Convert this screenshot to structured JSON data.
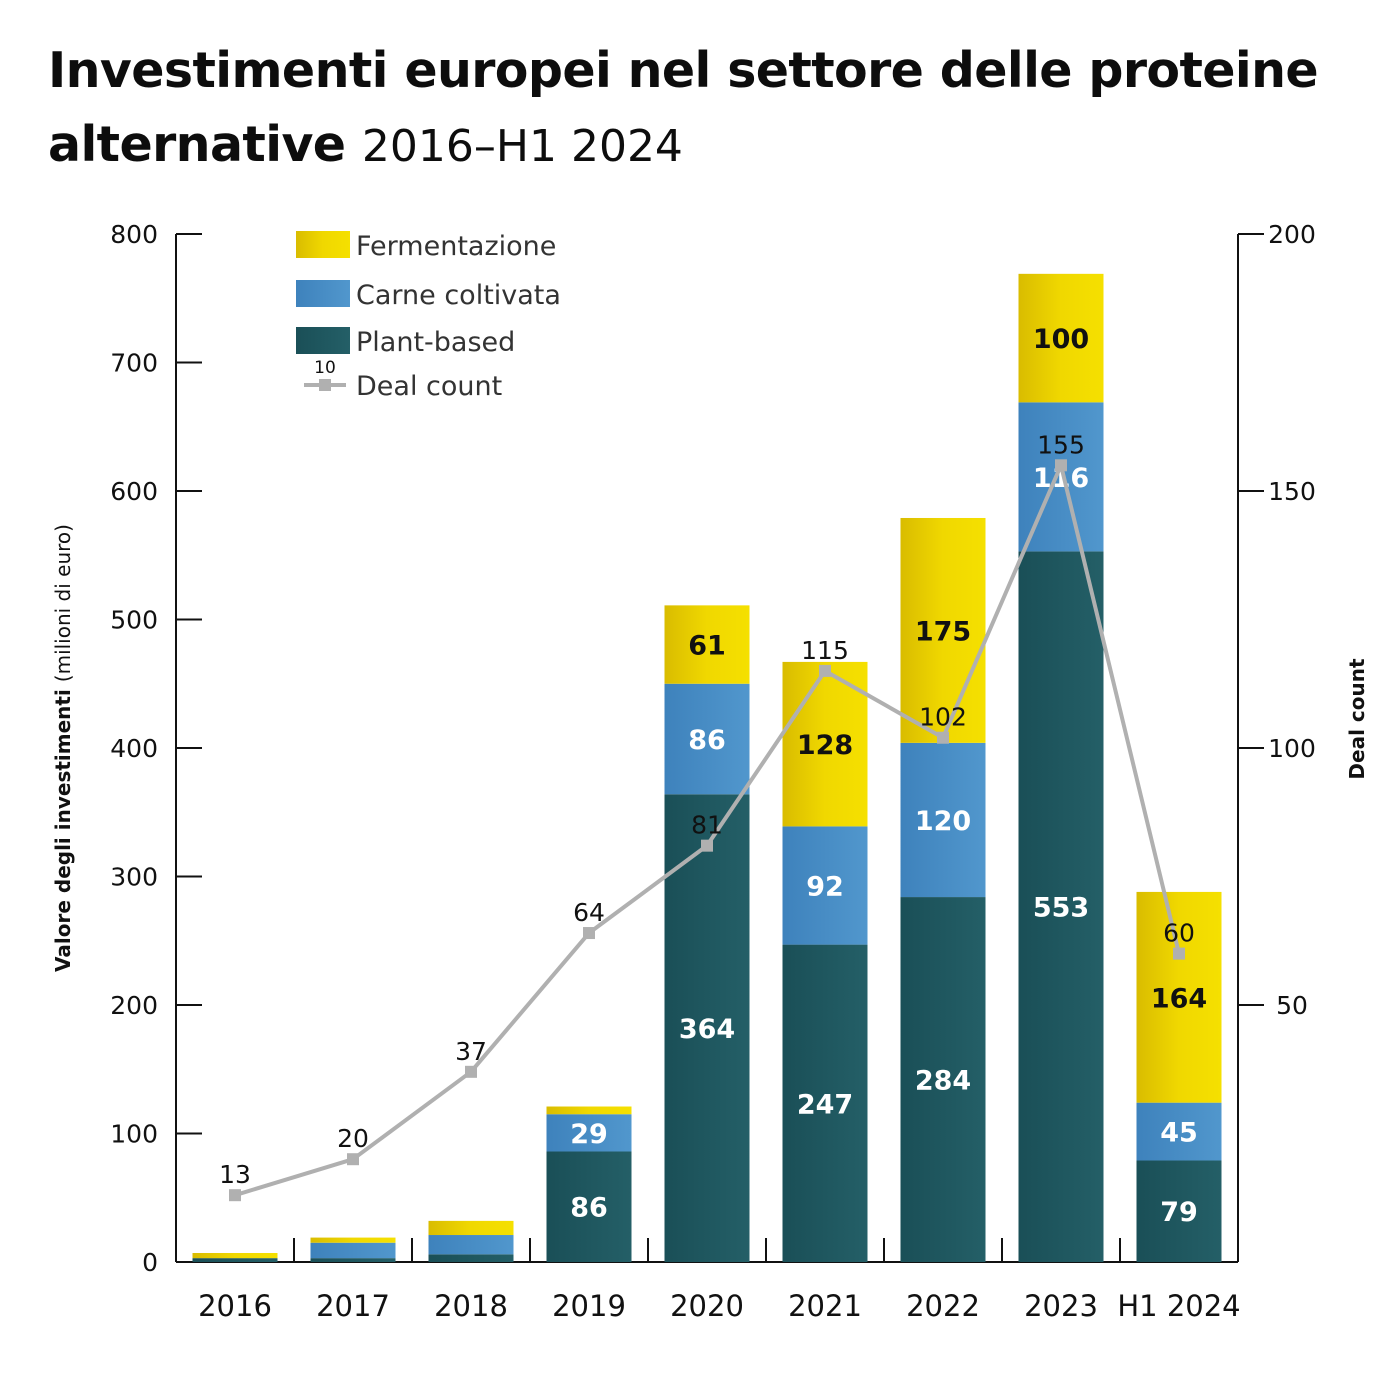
{
  "title": {
    "bold": "Investimenti europei nel settore delle proteine alternative",
    "light": "2016–H1 2024"
  },
  "colors": {
    "fermentation": "#f0d800",
    "fermentation_dark": "#d6b800",
    "cultivated": "#4a8ec6",
    "plant": "#1f5961",
    "deal": "#b0b0b0"
  },
  "chart_data": {
    "type": "bar",
    "stacked": true,
    "categories": [
      "2016",
      "2017",
      "2018",
      "2019",
      "2020",
      "2021",
      "2022",
      "2023",
      "H1 2024"
    ],
    "series": [
      {
        "name": "Plant-based",
        "values": [
          3,
          3,
          6,
          86,
          364,
          247,
          284,
          553,
          79
        ],
        "labels": [
          "",
          "",
          "",
          "86",
          "364",
          "247",
          "284",
          "553",
          "79"
        ]
      },
      {
        "name": "Carne coltivata",
        "values": [
          0,
          12,
          15,
          29,
          86,
          92,
          120,
          116,
          45
        ],
        "labels": [
          "",
          "",
          "",
          "29",
          "86",
          "92",
          "120",
          "116",
          "45"
        ]
      },
      {
        "name": "Fermentazione",
        "values": [
          4,
          4,
          11,
          6,
          61,
          128,
          175,
          100,
          164
        ],
        "labels": [
          "",
          "",
          "",
          "",
          "61",
          "128",
          "175",
          "100",
          "164"
        ]
      }
    ],
    "line_series": {
      "name": "Deal count",
      "values": [
        13,
        20,
        37,
        64,
        81,
        115,
        102,
        155,
        60
      ]
    },
    "ylabel": "Valore degli investimenti",
    "ylabel_unit": "(milioni di euro)",
    "y2label": "Deal count",
    "ylim": [
      0,
      800
    ],
    "y_ticks": [
      "0",
      "100",
      "200",
      "300",
      "400",
      "500",
      "600",
      "700",
      "800"
    ],
    "y2lim": [
      0,
      200
    ],
    "y2_ticks": [
      "50",
      "100",
      "150",
      "200"
    ],
    "legend": {
      "placement": "top-left",
      "items": [
        "Fermentazione",
        "Carne coltivata",
        "Plant-based",
        "Deal count"
      ],
      "deal_marker_label": "10"
    },
    "grid": false
  }
}
